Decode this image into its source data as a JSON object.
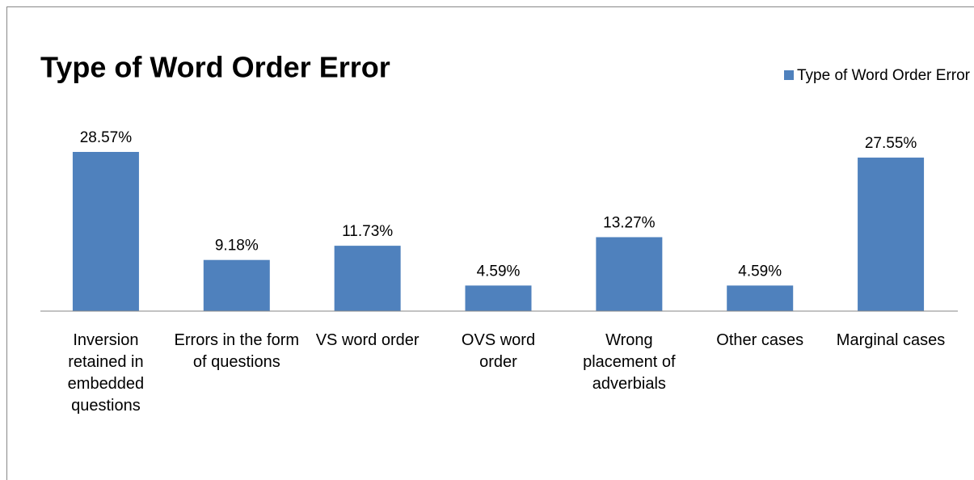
{
  "chart_data": {
    "type": "bar",
    "title": "Type of Word Order Error",
    "categories": [
      "Inversion retained in embedded questions",
      "Errors in the form of questions",
      "VS word order",
      "OVS word order",
      "Wrong placement of adverbials",
      "Other cases",
      "Marginal cases"
    ],
    "series": [
      {
        "name": "Type of Word Order Error",
        "color": "#4f81bd",
        "values": [
          28.57,
          9.18,
          11.73,
          4.59,
          13.27,
          4.59,
          27.55
        ],
        "value_labels": [
          "28.57%",
          "9.18%",
          "11.73%",
          "4.59%",
          "13.27%",
          "4.59%",
          "27.55%"
        ]
      }
    ],
    "legend": "top-right"
  }
}
